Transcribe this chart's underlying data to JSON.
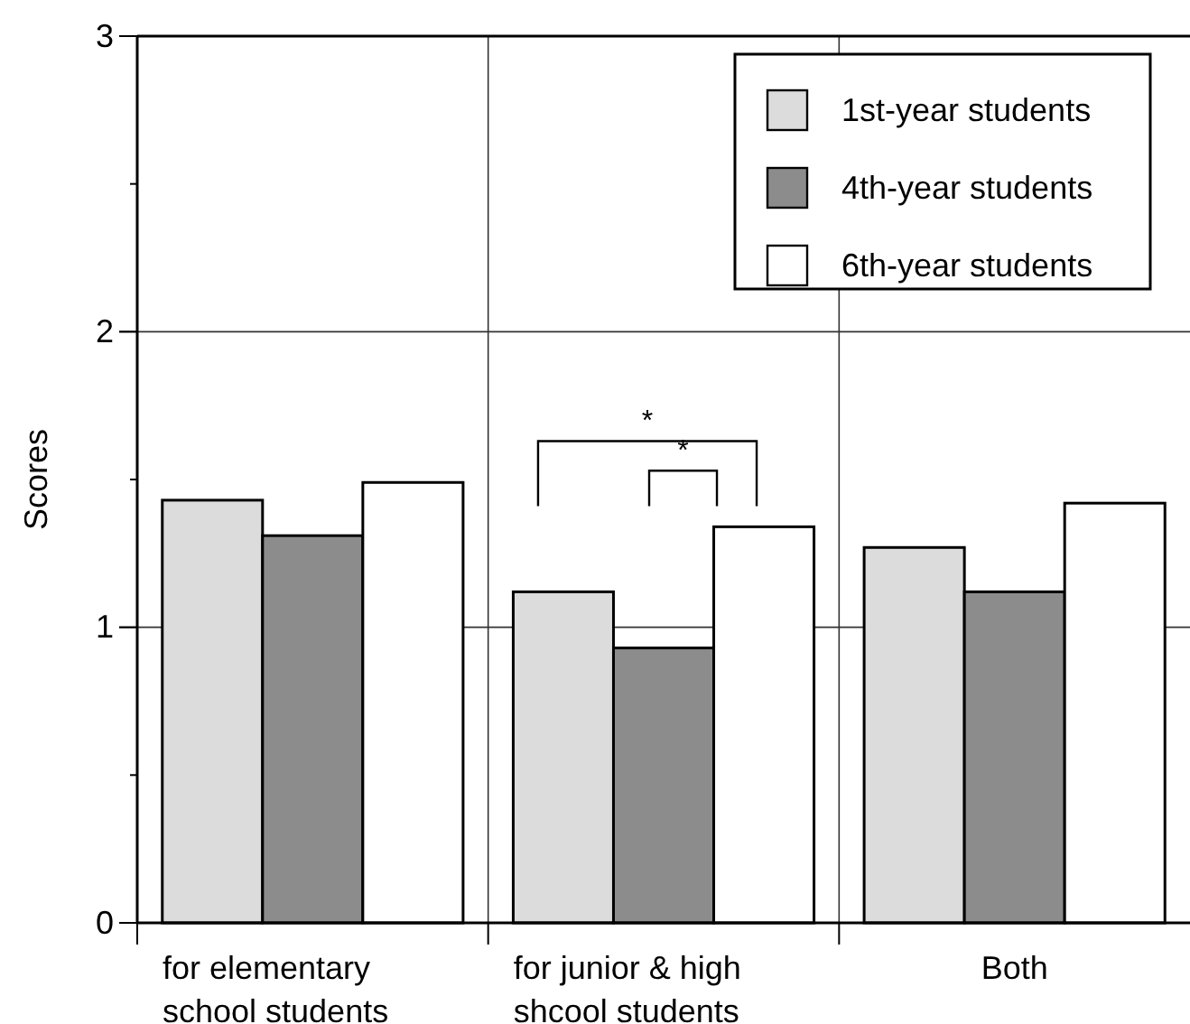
{
  "chart_data": {
    "type": "bar",
    "ylabel": "Scores",
    "categories": [
      "for elementary\nschool students",
      "for junior & high\nshcool students",
      "Both"
    ],
    "series": [
      {
        "name": "1st-year students",
        "color": "#dcdcdc",
        "values": [
          1.43,
          1.12,
          1.27
        ]
      },
      {
        "name": "4th-year students",
        "color": "#8c8c8c",
        "values": [
          1.31,
          0.93,
          1.12
        ]
      },
      {
        "name": "6th-year students",
        "color": "#ffffff",
        "values": [
          1.49,
          1.34,
          1.42
        ]
      }
    ],
    "ylim": [
      0,
      3
    ],
    "yticks": [
      0,
      {
        "value": 0.5,
        "label": null
      },
      1,
      {
        "value": 1.5,
        "label": null
      },
      2,
      {
        "value": 2.5,
        "label": null
      },
      3
    ],
    "grid": true,
    "legend": "top right",
    "annotations": [
      "*",
      "*"
    ]
  }
}
